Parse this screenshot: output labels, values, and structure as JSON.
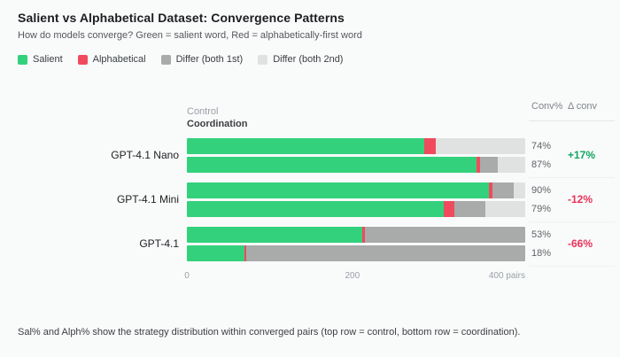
{
  "title": "Salient vs Alphabetical Dataset: Convergence Patterns",
  "subtitle": "How do models converge? Green = salient word, Red = alphabetically-first word",
  "legend": [
    {
      "label": "Salient",
      "color": "#33d17c"
    },
    {
      "label": "Alphabetical",
      "color": "#ef4b5d"
    },
    {
      "label": "Differ (both 1st)",
      "color": "#a9abab"
    },
    {
      "label": "Differ (both 2nd)",
      "color": "#e0e2e2"
    }
  ],
  "bar_header": {
    "top": "Control",
    "bottom": "Coordination"
  },
  "stats_header": {
    "conv": "Conv%",
    "delta": "Δ conv"
  },
  "colors": {
    "salient": "#33d17c",
    "alphabetical": "#ef4b5d",
    "differ_both_1st": "#a9abab",
    "differ_both_2nd": "#e0e2e2",
    "delta_positive": "#0fa662",
    "delta_negative": "#e8335a"
  },
  "axis": {
    "max": 409,
    "ticks": [
      {
        "label": "0",
        "value": 0,
        "align": "center"
      },
      {
        "label": "200",
        "value": 200,
        "align": "center"
      },
      {
        "label": "400 pairs",
        "value": 400,
        "align": "right"
      }
    ]
  },
  "rows": [
    {
      "model": "GPT-4.1 Nano",
      "control": {
        "segments": [
          287,
          14,
          0,
          108
        ],
        "conv": "74%"
      },
      "coordination": {
        "segments": [
          350,
          4,
          22,
          33
        ],
        "conv": "87%"
      },
      "delta": "+17%",
      "delta_color": "#0fa662"
    },
    {
      "model": "GPT-4.1 Mini",
      "control": {
        "segments": [
          365,
          4,
          26,
          14
        ],
        "conv": "90%"
      },
      "coordination": {
        "segments": [
          311,
          12,
          38,
          48
        ],
        "conv": "79%"
      },
      "delta": "-12%",
      "delta_color": "#e8335a"
    },
    {
      "model": "GPT-4.1",
      "control": {
        "segments": [
          212,
          3,
          194,
          0
        ],
        "conv": "53%"
      },
      "coordination": {
        "segments": [
          70,
          2,
          337,
          0
        ],
        "conv": "18%"
      },
      "delta": "-66%",
      "delta_color": "#e8335a"
    }
  ],
  "chart_data": {
    "type": "bar",
    "orientation": "horizontal",
    "stacked": true,
    "title": "Salient vs Alphabetical Dataset: Convergence Patterns",
    "xlabel": "pairs",
    "xlim": [
      0,
      409
    ],
    "xticks": [
      0,
      200,
      400
    ],
    "grid": false,
    "legend_position": "top",
    "categories": [
      "GPT-4.1 Nano · Control",
      "GPT-4.1 Nano · Coordination",
      "GPT-4.1 Mini · Control",
      "GPT-4.1 Mini · Coordination",
      "GPT-4.1 · Control",
      "GPT-4.1 · Coordination"
    ],
    "series": [
      {
        "name": "Salient",
        "values": [
          287,
          350,
          365,
          311,
          212,
          70
        ]
      },
      {
        "name": "Alphabetical",
        "values": [
          14,
          4,
          4,
          12,
          3,
          2
        ]
      },
      {
        "name": "Differ (both 1st)",
        "values": [
          0,
          22,
          26,
          38,
          194,
          337
        ]
      },
      {
        "name": "Differ (both 2nd)",
        "values": [
          108,
          33,
          14,
          48,
          0,
          0
        ]
      }
    ],
    "annotations": {
      "conv_pct": [
        "74%",
        "87%",
        "90%",
        "79%",
        "53%",
        "18%"
      ],
      "delta_conv": [
        "+17%",
        "-12%",
        "-66%"
      ]
    }
  },
  "footer": "Sal% and Alph% show the strategy distribution within converged pairs (top row = control, bottom row = coordination)."
}
